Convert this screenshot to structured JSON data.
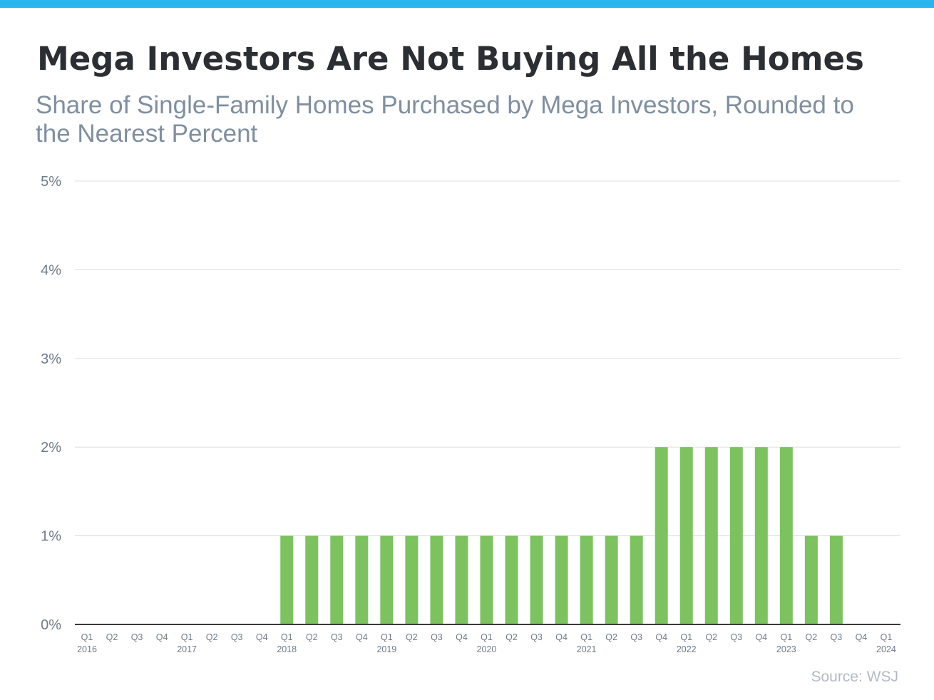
{
  "header": {
    "title": "Mega Investors Are Not Buying All the Homes",
    "subtitle": "Share of Single-Family Homes Purchased by Mega Investors, Rounded to the Nearest Percent"
  },
  "source": "Source: WSJ",
  "colors": {
    "accent_bar": "#29b6ef",
    "bar": "#7cc35f",
    "grid": "#dcdfe3",
    "axis": "#3a3a3a"
  },
  "chart_data": {
    "type": "bar",
    "y_tick_labels": [
      "0%",
      "1%",
      "2%",
      "3%",
      "4%",
      "5%"
    ],
    "ylim": [
      0,
      5
    ],
    "grid": true,
    "categories": [
      {
        "quarter": "Q1",
        "year": "2016"
      },
      {
        "quarter": "Q2",
        "year": ""
      },
      {
        "quarter": "Q3",
        "year": ""
      },
      {
        "quarter": "Q4",
        "year": ""
      },
      {
        "quarter": "Q1",
        "year": "2017"
      },
      {
        "quarter": "Q2",
        "year": ""
      },
      {
        "quarter": "Q3",
        "year": ""
      },
      {
        "quarter": "Q4",
        "year": ""
      },
      {
        "quarter": "Q1",
        "year": "2018"
      },
      {
        "quarter": "Q2",
        "year": ""
      },
      {
        "quarter": "Q3",
        "year": ""
      },
      {
        "quarter": "Q4",
        "year": ""
      },
      {
        "quarter": "Q1",
        "year": "2019"
      },
      {
        "quarter": "Q2",
        "year": ""
      },
      {
        "quarter": "Q3",
        "year": ""
      },
      {
        "quarter": "Q4",
        "year": ""
      },
      {
        "quarter": "Q1",
        "year": "2020"
      },
      {
        "quarter": "Q2",
        "year": ""
      },
      {
        "quarter": "Q3",
        "year": ""
      },
      {
        "quarter": "Q4",
        "year": ""
      },
      {
        "quarter": "Q1",
        "year": "2021"
      },
      {
        "quarter": "Q2",
        "year": ""
      },
      {
        "quarter": "Q3",
        "year": ""
      },
      {
        "quarter": "Q4",
        "year": ""
      },
      {
        "quarter": "Q1",
        "year": "2022"
      },
      {
        "quarter": "Q2",
        "year": ""
      },
      {
        "quarter": "Q3",
        "year": ""
      },
      {
        "quarter": "Q4",
        "year": ""
      },
      {
        "quarter": "Q1",
        "year": "2023"
      },
      {
        "quarter": "Q2",
        "year": ""
      },
      {
        "quarter": "Q3",
        "year": ""
      },
      {
        "quarter": "Q4",
        "year": ""
      },
      {
        "quarter": "Q1",
        "year": "2024"
      }
    ],
    "values": [
      0,
      0,
      0,
      0,
      0,
      0,
      0,
      0,
      1,
      1,
      1,
      1,
      1,
      1,
      1,
      1,
      1,
      1,
      1,
      1,
      1,
      1,
      1,
      2,
      2,
      2,
      2,
      2,
      2,
      1,
      1,
      0,
      0
    ]
  }
}
